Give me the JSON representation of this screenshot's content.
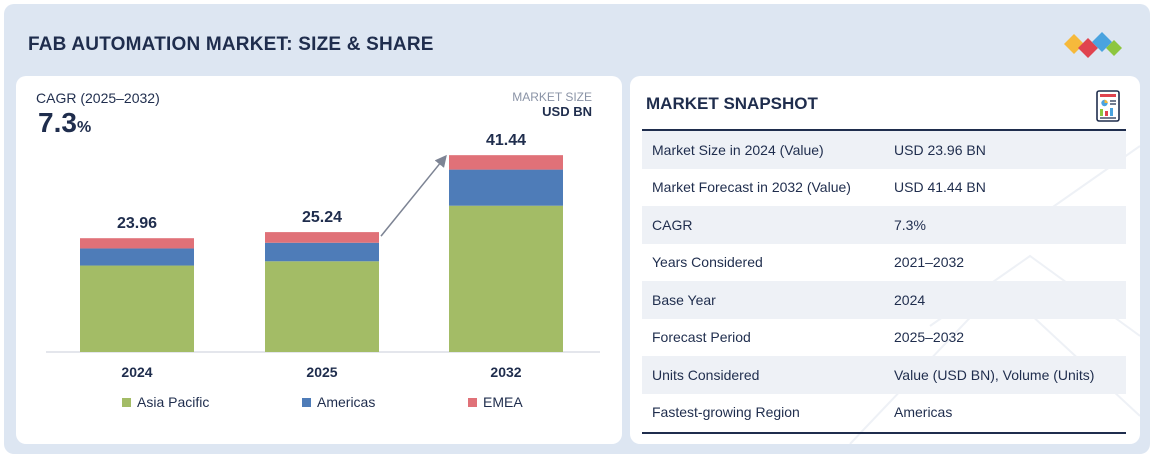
{
  "header": {
    "title": "FAB AUTOMATION MARKET: SIZE & SHARE"
  },
  "colors": {
    "asia_pacific": "#a3bc66",
    "americas": "#4e7cb8",
    "emea": "#e07178",
    "text_dark": "#1f2d4d",
    "logo_colors": [
      "#f6b93b",
      "#e0434f",
      "#4aa3df",
      "#8dc63f"
    ]
  },
  "icons": {
    "logo": "diamond-cluster-logo",
    "snapshot": "report-document-icon"
  },
  "chart_info": {
    "cagr_label": "CAGR (2025–2032)",
    "cagr_value": "7.3",
    "cagr_unit": "%",
    "market_size_label": "MARKET SIZE",
    "market_size_unit": "USD BN"
  },
  "chart_data": {
    "type": "bar",
    "stacked": true,
    "title": "FAB AUTOMATION MARKET: SIZE & SHARE",
    "categories": [
      "2024",
      "2025",
      "2032"
    ],
    "totals": [
      23.96,
      25.24,
      41.44
    ],
    "total_labels": [
      "23.96",
      "25.24",
      "41.44"
    ],
    "series": [
      {
        "name": "Asia Pacific",
        "values": [
          18.2,
          19.1,
          30.8
        ]
      },
      {
        "name": "Americas",
        "values": [
          3.6,
          3.9,
          7.6
        ]
      },
      {
        "name": "EMEA",
        "values": [
          2.16,
          2.24,
          3.04
        ]
      }
    ],
    "ylim": [
      0,
      48
    ],
    "xlabel": "",
    "ylabel": "USD BN",
    "legend": "bottom",
    "grid": false,
    "annotation": "growth arrow from 2025 to 2032"
  },
  "snapshot": {
    "title": "MARKET SNAPSHOT",
    "rows": [
      {
        "label": "Market Size in 2024 (Value)",
        "value": "USD 23.96 BN"
      },
      {
        "label": "Market Forecast in 2032 (Value)",
        "value": "USD 41.44 BN"
      },
      {
        "label": "CAGR",
        "value": "7.3%"
      },
      {
        "label": "Years Considered",
        "value": "2021–2032"
      },
      {
        "label": "Base Year",
        "value": "2024"
      },
      {
        "label": "Forecast Period",
        "value": "2025–2032"
      },
      {
        "label": "Units Considered",
        "value": "Value (USD BN), Volume (Units)"
      },
      {
        "label": "Fastest-growing Region",
        "value": "Americas"
      }
    ]
  }
}
